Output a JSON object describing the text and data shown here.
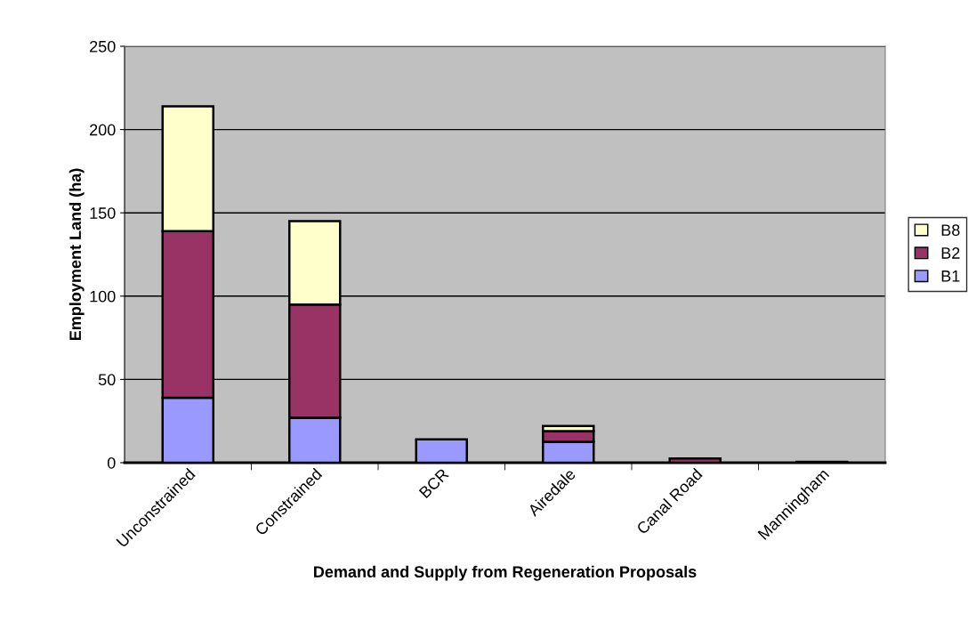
{
  "chart_data": {
    "type": "bar",
    "stacked": true,
    "xlabel": "Demand and Supply from Regeneration Proposals",
    "ylabel": "Employment Land (ha)",
    "categories": [
      "Unconstrained",
      "Constrained",
      "BCR",
      "Airedale",
      "Canal Road",
      "Manningham"
    ],
    "series": [
      {
        "name": "B1",
        "color": "#9999ff",
        "values": [
          39,
          27,
          14,
          12.5,
          null,
          null
        ]
      },
      {
        "name": "B2",
        "color": "#993366",
        "values": [
          100,
          68,
          null,
          6.5,
          2.5,
          0.5
        ]
      },
      {
        "name": "B8",
        "color": "#ffffcc",
        "values": [
          75,
          50,
          null,
          3,
          null,
          null
        ]
      }
    ],
    "ylim": [
      0,
      250
    ],
    "yticks": [
      0,
      50,
      100,
      150,
      200,
      250
    ],
    "grid": "y",
    "legend": "right"
  }
}
